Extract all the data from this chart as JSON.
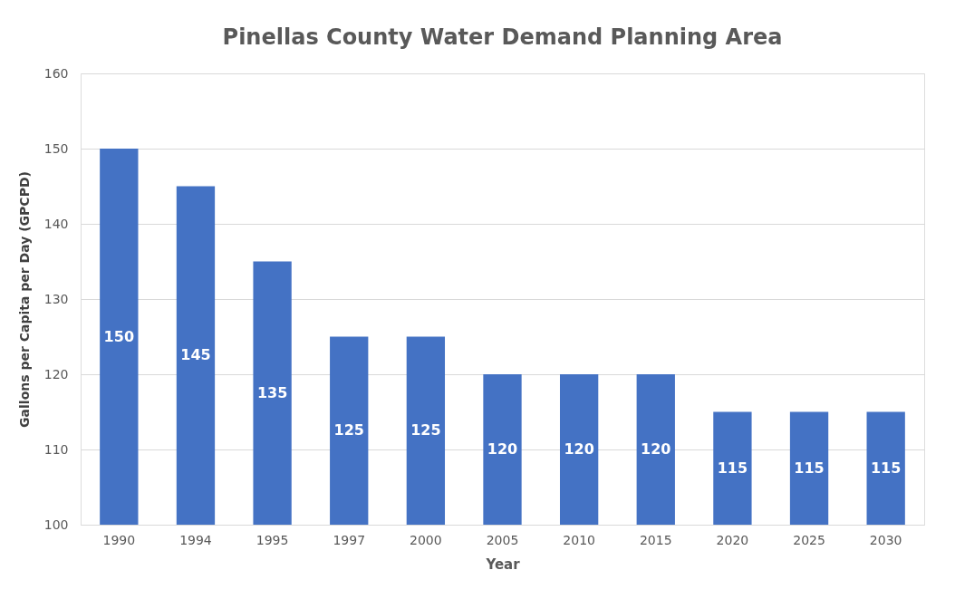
{
  "chart_data": {
    "type": "bar",
    "title": "Pinellas County Water Demand Planning Area",
    "xlabel": "Year",
    "ylabel": "Gallons  per Capita per Day (GPCPD)",
    "categories": [
      "1990",
      "1994",
      "1995",
      "1997",
      "2000",
      "2005",
      "2010",
      "2015",
      "2020",
      "2025",
      "2030"
    ],
    "values": [
      150,
      145,
      135,
      125,
      125,
      120,
      120,
      120,
      115,
      115,
      115
    ],
    "color": "#4472c4",
    "ylim": [
      100,
      160
    ],
    "yticks": [
      100,
      110,
      120,
      130,
      140,
      150,
      160
    ],
    "grid": "y",
    "data_labels": true
  }
}
